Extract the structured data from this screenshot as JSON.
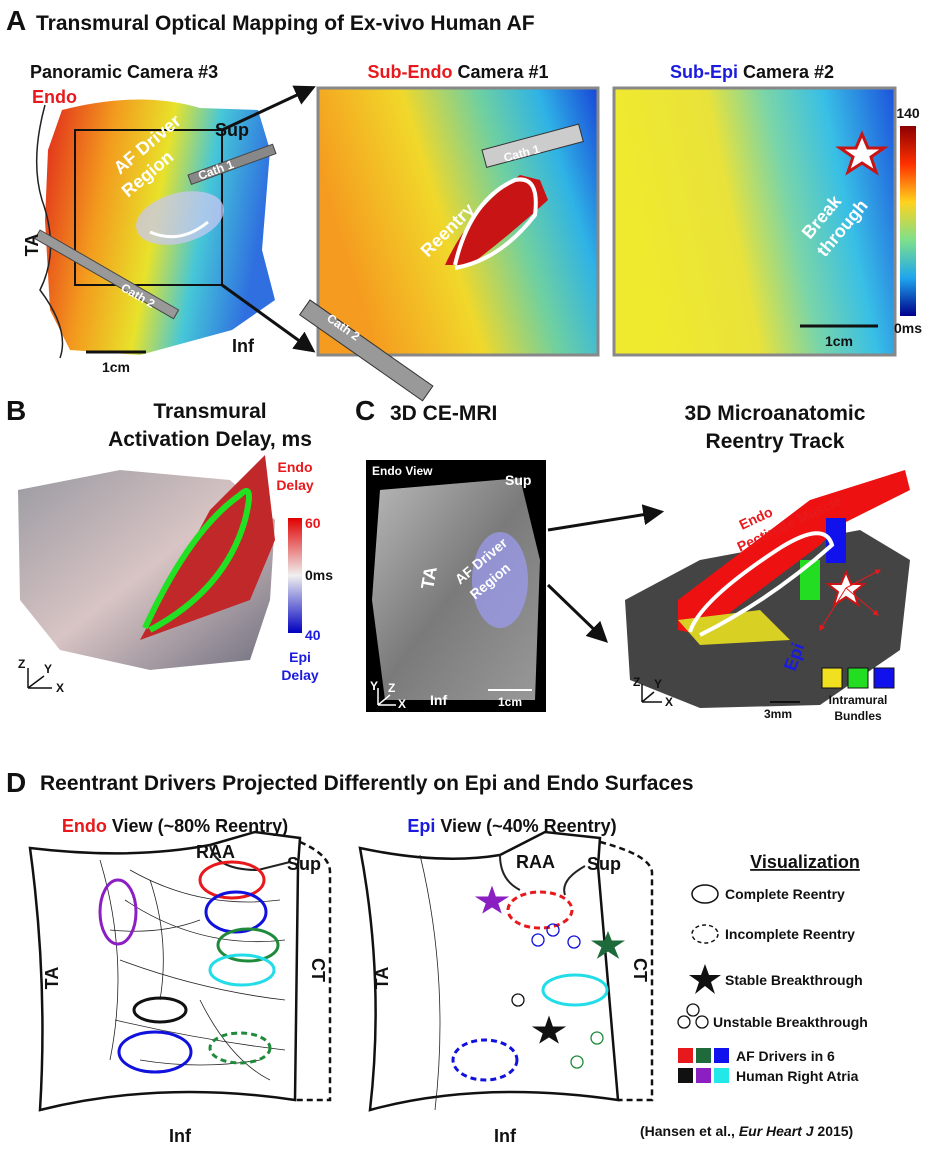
{
  "panel_a": {
    "letter": "A",
    "title": "Transmural Optical Mapping of Ex-vivo Human AF",
    "panoramic": {
      "title": "Panoramic Camera #3",
      "endo": "Endo",
      "sup": "Sup",
      "ta": "TA",
      "driver": [
        "AF Driver",
        "Region"
      ],
      "cath1": "Cath 1",
      "cath2": "Cath 2",
      "scale": "1cm",
      "inf": "Inf"
    },
    "camera1": {
      "highlight": "Sub-Endo",
      "rest": "Camera #1",
      "cath1": "Cath 1",
      "reentry": "Reentry",
      "cath2": "Cath 2"
    },
    "camera2": {
      "highlight": "Sub-Epi",
      "rest": "Camera #2",
      "breakthrough": [
        "Break",
        "through"
      ],
      "scale": "1cm"
    },
    "colorbar": {
      "max": "140",
      "min": "0ms"
    }
  },
  "panel_b": {
    "letter": "B",
    "title": [
      "Transmural",
      "Activation Delay, ms"
    ],
    "endo_delay": [
      "Endo",
      "Delay"
    ],
    "max": "60",
    "mid": "0ms",
    "min": "40",
    "epi_delay": [
      "Epi",
      "Delay"
    ],
    "axes": [
      "Z",
      "Y",
      "X"
    ]
  },
  "panel_c": {
    "letter": "C",
    "mri_title": "3D CE-MRI",
    "endo_view": "Endo View",
    "sup": "Sup",
    "ta": "TA",
    "driver": [
      "AF Driver",
      "Region"
    ],
    "inf": "Inf",
    "scale": "1cm",
    "axes": [
      "Y",
      "Z",
      "X"
    ],
    "track_title": [
      "3D Microanatomic",
      "Reentry Track"
    ],
    "endo": "Endo",
    "pectinate": "Pectinate Muscle",
    "epi": "Epi",
    "track_scale": "3mm",
    "bundles": [
      "Intramural",
      "Bundles"
    ],
    "track_axes": [
      "Z",
      "Y",
      "X"
    ]
  },
  "panel_d": {
    "letter": "D",
    "title": "Reentrant Drivers Projected Differently on Epi and Endo Surfaces",
    "endo_view": {
      "highlight": "Endo",
      "rest": "View (~80% Reentry)",
      "raa": "RAA",
      "sup": "Sup",
      "ta": "TA",
      "ct": "CT",
      "inf": "Inf"
    },
    "epi_view": {
      "highlight": "Epi",
      "rest": "View (~40% Reentry)",
      "raa": "RAA",
      "sup": "Sup",
      "ta": "TA",
      "ct": "CT",
      "inf": "Inf"
    },
    "legend": {
      "title": "Visualization",
      "items": [
        "Complete Reentry",
        "Incomplete Reentry",
        "Stable Breakthrough",
        "Unstable Breakthrough"
      ],
      "drivers": [
        "AF Drivers in 6",
        "Human Right Atria"
      ]
    },
    "citation": {
      "before": "(Hansen et al., ",
      "journal": "Eur Heart J",
      "after": " 2015)"
    }
  }
}
